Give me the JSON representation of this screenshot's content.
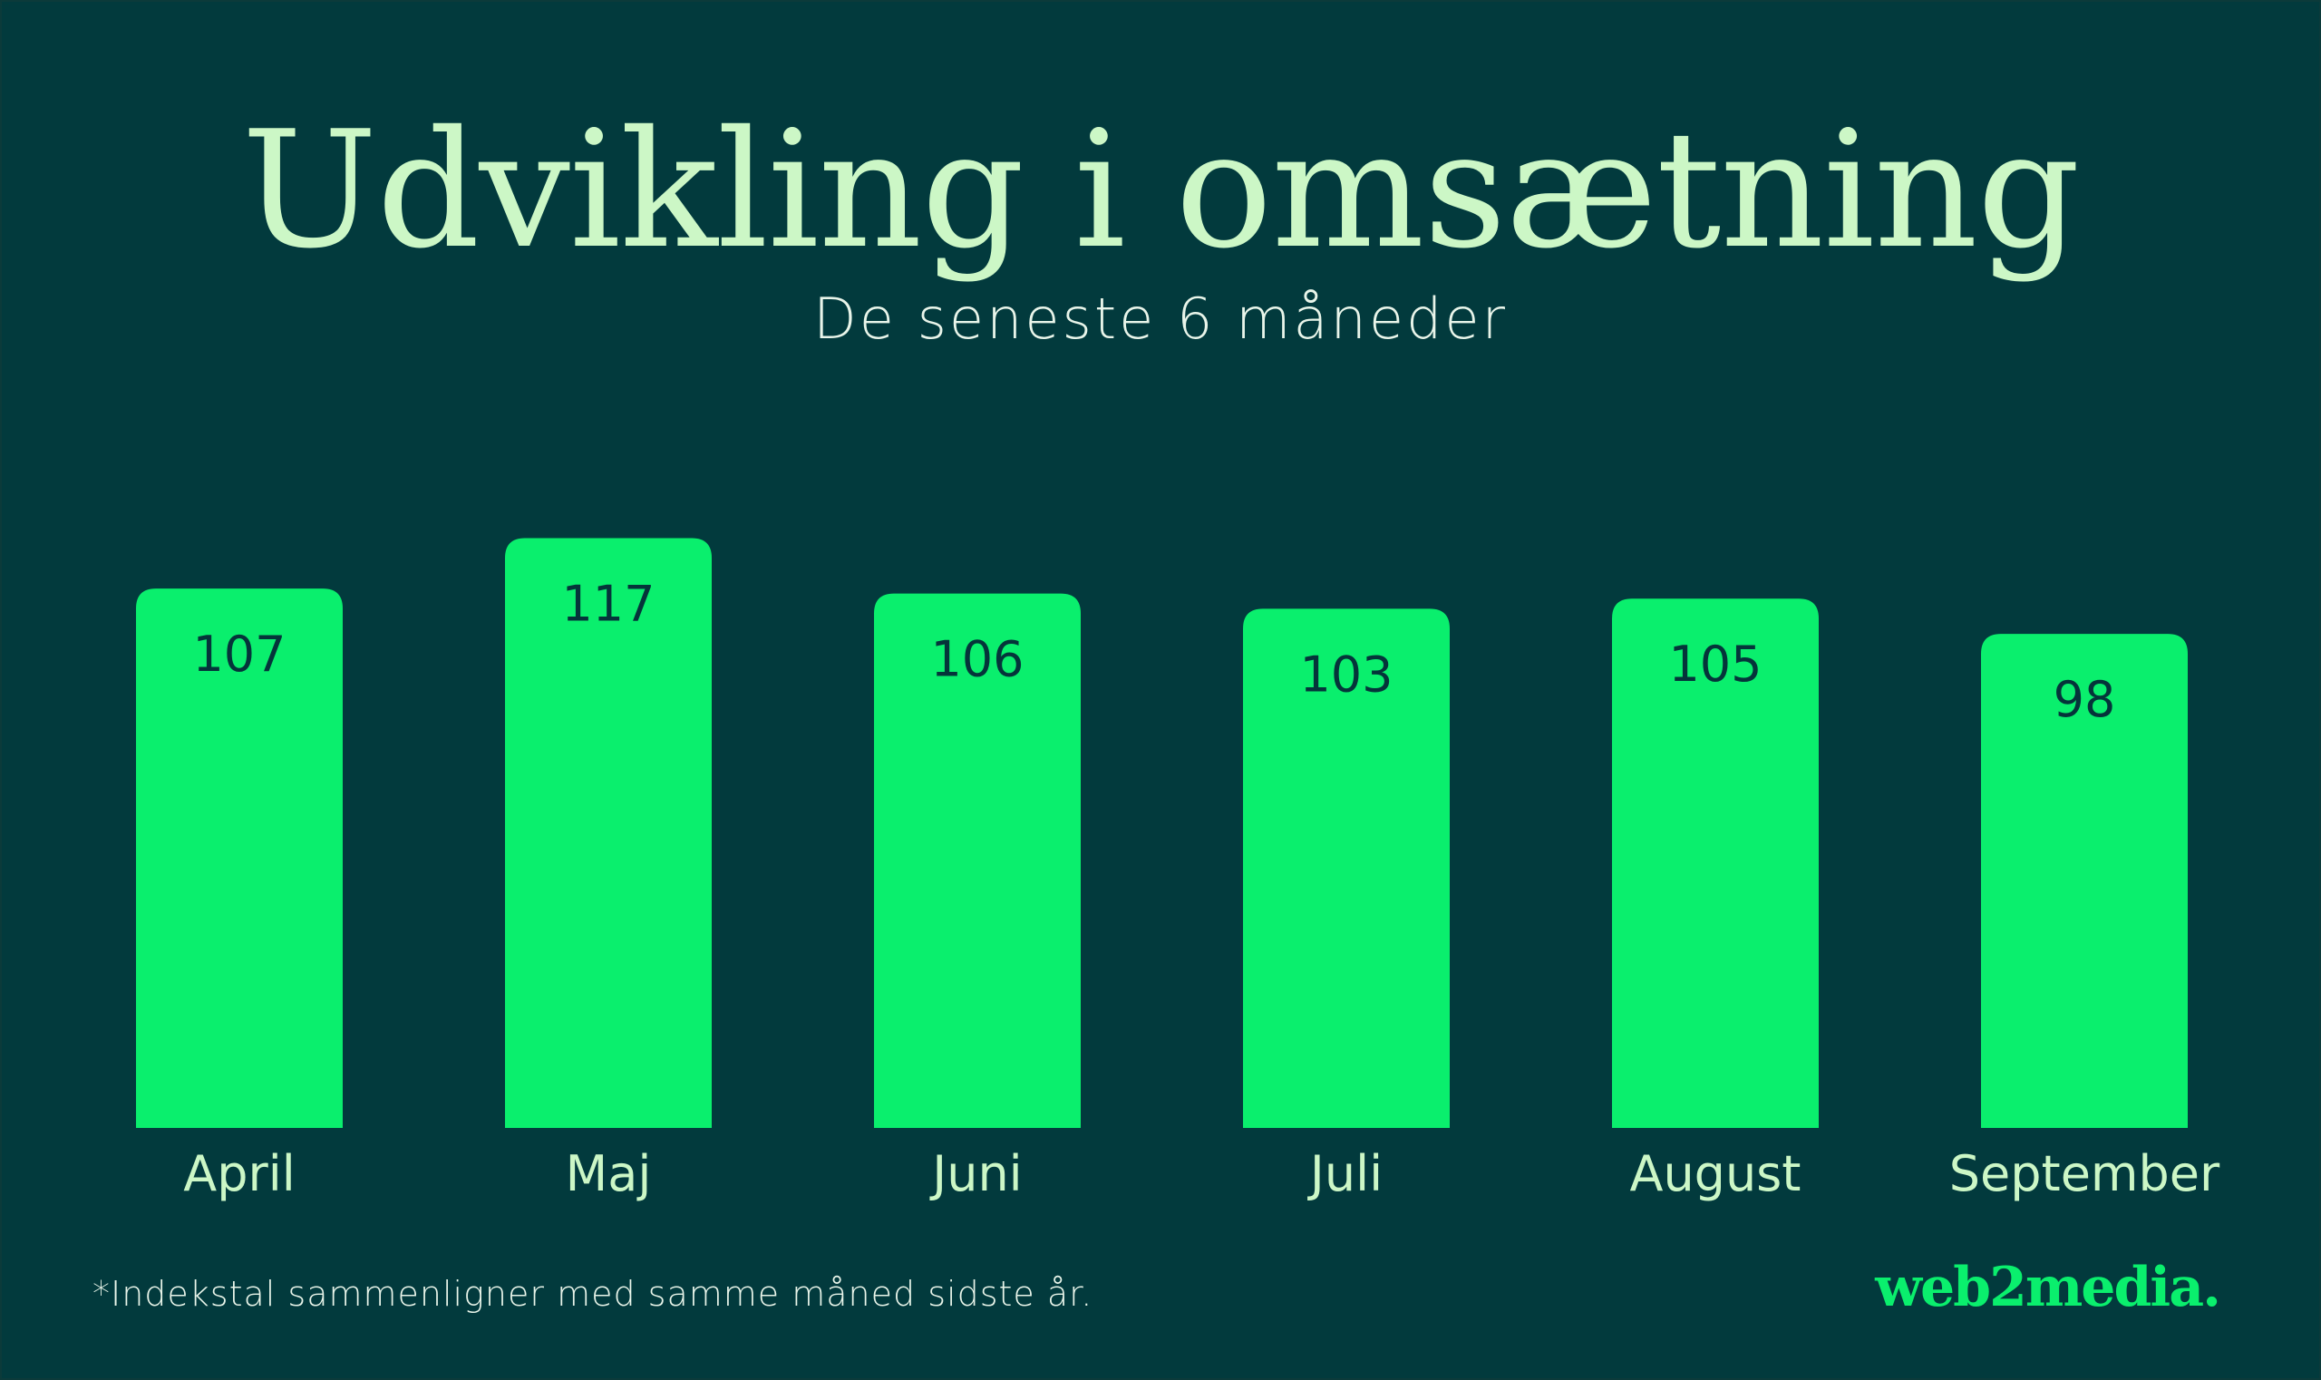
{
  "colors": {
    "background": "#023a3d",
    "bar": "#0aef6d",
    "title": "#ccf7c6",
    "text": "#e9f5ea",
    "value_label": "#05343a"
  },
  "chart_data": {
    "type": "bar",
    "title": "Udvikling i omsætning",
    "subtitle": "De seneste 6 måneder",
    "categories": [
      "April",
      "Maj",
      "Juni",
      "Juli",
      "August",
      "September"
    ],
    "values": [
      107,
      117,
      106,
      103,
      105,
      98
    ],
    "value_labels": [
      "107",
      "117",
      "106",
      "103",
      "105",
      "98"
    ],
    "xlabel": "",
    "ylabel": "",
    "grid": false
  },
  "footnote": "*Indekstal sammenligner med samme måned sidste år.",
  "logo": "web2media."
}
